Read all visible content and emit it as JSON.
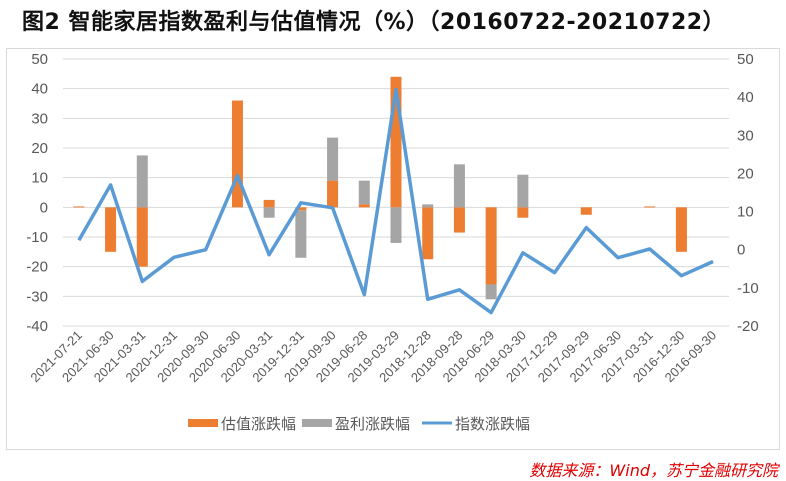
{
  "title": "图2 智能家居指数盈利与估值情况（%）（20160722-20210722）",
  "source": "数据来源：Wind，苏宁金融研究院",
  "colors": {
    "valuation": "#ed7d31",
    "earnings": "#a5a5a5",
    "index": "#5b9bd5",
    "grid": "#d9d9d9",
    "text": "#595959",
    "source": "#e00000"
  },
  "chart_data": {
    "type": "bar",
    "title": "图2 智能家居指数盈利与估值情况（%）（20160722-20210722）",
    "xlabel": "",
    "ylabel": "",
    "categories": [
      "2021-07-21",
      "2021-06-30",
      "2021-03-31",
      "2020-12-31",
      "2020-09-30",
      "2020-06-30",
      "2020-03-31",
      "2019-12-31",
      "2019-09-30",
      "2019-06-28",
      "2019-03-29",
      "2018-12-28",
      "2018-09-28",
      "2018-06-29",
      "2018-03-30",
      "2017-12-29",
      "2017-09-29",
      "2017-06-30",
      "2017-03-31",
      "2016-12-30",
      "2016-09-30"
    ],
    "series": [
      {
        "name": "估值涨跌幅",
        "type": "stacked-bar",
        "axis": "left",
        "values": [
          0.3,
          -15,
          -20,
          0,
          0,
          36,
          2.5,
          -1,
          9,
          1,
          44,
          -17.5,
          -8.5,
          -26,
          -3.5,
          0,
          -2.5,
          0,
          0.3,
          -15,
          0
        ]
      },
      {
        "name": "盈利涨跌幅",
        "type": "stacked-bar",
        "axis": "left",
        "values": [
          0,
          0,
          17.5,
          0,
          0,
          0,
          -3.5,
          -16,
          14.5,
          8,
          -12,
          1,
          14.5,
          -5,
          11,
          0,
          0,
          0,
          0,
          0,
          0
        ]
      },
      {
        "name": "指数涨跌幅",
        "type": "line",
        "axis": "right",
        "values": [
          2.5,
          17,
          -8.3,
          -2,
          0,
          19.4,
          -1.3,
          12.3,
          11,
          -11.8,
          42,
          -13,
          -10.5,
          -16.5,
          -0.8,
          -6,
          5.8,
          -2.1,
          0.2,
          -6.8,
          -3.1
        ]
      }
    ],
    "ylim_left": [
      -40,
      50
    ],
    "ylim_right": [
      -20,
      50
    ],
    "yticks_left": [
      "50",
      "40",
      "30",
      "20",
      "10",
      "0",
      "-10",
      "-20",
      "-30",
      "-40"
    ],
    "yticks_right": [
      "50",
      "40",
      "30",
      "20",
      "10",
      "0",
      "-10",
      "-20"
    ],
    "grid": true,
    "legend_position": "bottom"
  }
}
